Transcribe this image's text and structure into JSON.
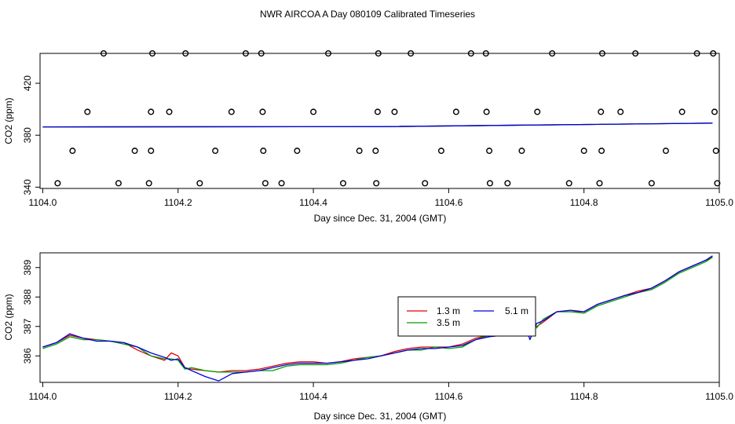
{
  "title": "NWR AIRCOA A  Day 080109  Calibrated Timeseries",
  "colors": {
    "red": "#e00000",
    "green": "#00a000",
    "blue": "#0000e0",
    "axis": "#000000"
  },
  "chart_data": [
    {
      "type": "scatter",
      "title": "NWR AIRCOA A  Day 080109  Calibrated Timeseries",
      "xlabel": "Day since Dec. 31, 2004 (GMT)",
      "ylabel": "CO2 (ppm)",
      "xlim": [
        1103.996,
        1105.0
      ],
      "ylim": [
        339,
        443
      ],
      "xticks": [
        "1104.0",
        "1104.2",
        "1104.4",
        "1104.6",
        "1104.8",
        "1105.0"
      ],
      "xtick_values": [
        1104.0,
        1104.2,
        1104.4,
        1104.6,
        1104.8,
        1105.0
      ],
      "yticks": [
        "340",
        "380",
        "420"
      ],
      "ytick_values": [
        340,
        380,
        420
      ],
      "grid": false,
      "points": {
        "marker": "circle",
        "level_443": [
          1104.09,
          1104.162,
          1104.211,
          1104.3,
          1104.323,
          1104.422,
          1104.496,
          1104.544,
          1104.633,
          1104.655,
          1104.753,
          1104.827,
          1104.876,
          1104.967,
          1104.991
        ],
        "level_398": [
          1104.066,
          1104.16,
          1104.187,
          1104.279,
          1104.325,
          1104.4,
          1104.495,
          1104.52,
          1104.611,
          1104.656,
          1104.731,
          1104.825,
          1104.854,
          1104.945,
          1104.993
        ],
        "level_368": [
          1104.044,
          1104.136,
          1104.16,
          1104.255,
          1104.326,
          1104.376,
          1104.468,
          1104.492,
          1104.589,
          1104.66,
          1104.708,
          1104.8,
          1104.826,
          1104.921,
          1104.995
        ],
        "level_343": [
          1104.022,
          1104.112,
          1104.157,
          1104.232,
          1104.329,
          1104.353,
          1104.444,
          1104.493,
          1104.565,
          1104.661,
          1104.687,
          1104.778,
          1104.823,
          1104.9,
          1104.997
        ]
      },
      "series": [
        {
          "color": "red",
          "x": [
            1104.0,
            1104.5,
            1104.99
          ],
          "values": [
            386.4,
            386.6,
            389.3
          ]
        },
        {
          "color": "green",
          "x": [
            1104.0,
            1104.5,
            1104.99
          ],
          "values": [
            386.4,
            386.6,
            389.3
          ]
        },
        {
          "color": "blue",
          "x": [
            1104.0,
            1104.5,
            1104.99
          ],
          "values": [
            386.4,
            386.6,
            389.3
          ]
        }
      ]
    },
    {
      "type": "line",
      "xlabel": "Day since Dec. 31, 2004 (GMT)",
      "ylabel": "CO2 (ppm)",
      "xlim": [
        1103.996,
        1105.0
      ],
      "ylim": [
        385.1,
        389.5
      ],
      "xticks": [
        "1104.0",
        "1104.2",
        "1104.4",
        "1104.6",
        "1104.8",
        "1105.0"
      ],
      "xtick_values": [
        1104.0,
        1104.2,
        1104.4,
        1104.6,
        1104.8,
        1105.0
      ],
      "yticks": [
        "386",
        "387",
        "388",
        "389"
      ],
      "ytick_values": [
        386,
        387,
        388,
        389
      ],
      "grid": false,
      "legend": {
        "placement": "center-right",
        "entries": [
          {
            "label": "1.3 m",
            "color": "red"
          },
          {
            "label": "3.5 m",
            "color": "green"
          },
          {
            "label": "5.1 m",
            "color": "blue"
          }
        ]
      },
      "x": [
        1104.0,
        1104.02,
        1104.04,
        1104.06,
        1104.08,
        1104.1,
        1104.12,
        1104.14,
        1104.16,
        1104.18,
        1104.19,
        1104.2,
        1104.21,
        1104.22,
        1104.24,
        1104.26,
        1104.28,
        1104.3,
        1104.32,
        1104.34,
        1104.36,
        1104.38,
        1104.4,
        1104.42,
        1104.44,
        1104.46,
        1104.48,
        1104.5,
        1104.52,
        1104.54,
        1104.56,
        1104.58,
        1104.6,
        1104.62,
        1104.64,
        1104.66,
        1104.68,
        1104.7,
        1104.71,
        1104.72,
        1104.73,
        1104.74,
        1104.76,
        1104.78,
        1104.8,
        1104.82,
        1104.84,
        1104.86,
        1104.88,
        1104.9,
        1104.92,
        1104.94,
        1104.96,
        1104.98,
        1104.99
      ],
      "series": [
        {
          "name": "1.3 m",
          "color": "red",
          "values": [
            386.3,
            386.45,
            386.7,
            386.6,
            386.55,
            386.5,
            386.45,
            386.2,
            386.0,
            385.85,
            386.1,
            386.0,
            385.6,
            385.55,
            385.5,
            385.45,
            385.5,
            385.5,
            385.55,
            385.65,
            385.75,
            385.8,
            385.8,
            385.75,
            385.8,
            385.9,
            385.95,
            386.0,
            386.15,
            386.25,
            386.3,
            386.3,
            386.3,
            386.4,
            386.6,
            386.7,
            386.75,
            386.8,
            387.0,
            387.05,
            387.0,
            387.15,
            387.5,
            387.5,
            387.5,
            387.75,
            387.9,
            388.05,
            388.2,
            388.3,
            388.55,
            388.85,
            389.05,
            389.25,
            389.35
          ]
        },
        {
          "name": "3.5 m",
          "color": "green",
          "values": [
            386.25,
            386.4,
            386.65,
            386.55,
            386.55,
            386.5,
            386.4,
            386.3,
            386.0,
            385.9,
            385.9,
            385.85,
            385.55,
            385.6,
            385.5,
            385.45,
            385.45,
            385.45,
            385.5,
            385.5,
            385.65,
            385.7,
            385.7,
            385.7,
            385.75,
            385.85,
            385.95,
            386.0,
            386.1,
            386.2,
            386.2,
            386.3,
            386.25,
            386.3,
            386.55,
            386.7,
            386.75,
            386.75,
            386.9,
            387.0,
            386.95,
            387.25,
            387.5,
            387.5,
            387.45,
            387.7,
            387.85,
            388.0,
            388.15,
            388.25,
            388.5,
            388.8,
            389.0,
            389.2,
            389.35
          ]
        },
        {
          "name": "5.1 m",
          "color": "blue",
          "values": [
            386.3,
            386.45,
            386.75,
            386.6,
            386.5,
            386.5,
            386.45,
            386.3,
            386.1,
            385.95,
            385.85,
            385.9,
            385.6,
            385.5,
            385.3,
            385.15,
            385.4,
            385.45,
            385.5,
            385.6,
            385.7,
            385.75,
            385.75,
            385.75,
            385.8,
            385.85,
            385.9,
            386.0,
            386.1,
            386.2,
            386.25,
            386.25,
            386.3,
            386.35,
            386.55,
            386.65,
            386.7,
            386.75,
            387.3,
            386.55,
            387.1,
            387.2,
            387.5,
            387.55,
            387.5,
            387.75,
            387.9,
            388.05,
            388.15,
            388.3,
            388.55,
            388.85,
            389.05,
            389.25,
            389.4
          ]
        }
      ]
    }
  ]
}
